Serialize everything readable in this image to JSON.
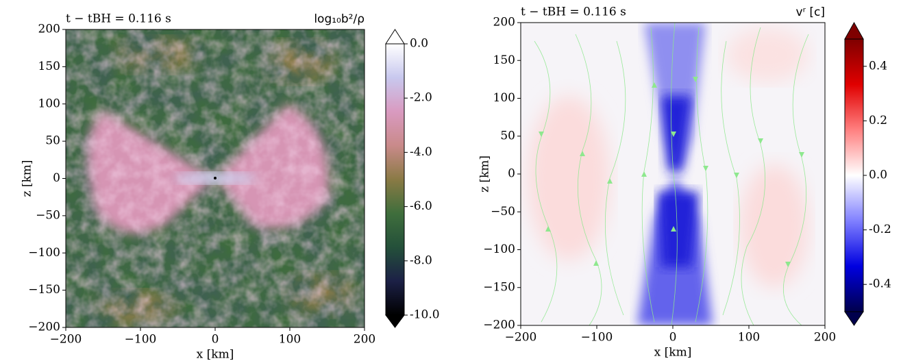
{
  "chart_data": [
    {
      "type": "heatmap",
      "annotation": "t − tBH = 0.116 s",
      "colorbar_label": "log₁₀b²/ρ",
      "xlabel": "x [km]",
      "ylabel": "z [km]",
      "xlim": [
        -200,
        200
      ],
      "ylim": [
        -200,
        200
      ],
      "xticks": [
        {
          "value": -200,
          "label": "−200"
        },
        {
          "value": -100,
          "label": "−100"
        },
        0,
        100,
        200
      ],
      "yticks": [
        200,
        150,
        100,
        50,
        0,
        {
          "value": -50,
          "label": "−50"
        },
        {
          "value": -100,
          "label": "−100"
        },
        {
          "value": -150,
          "label": "−150"
        },
        {
          "value": -200,
          "label": "−200"
        }
      ],
      "clim": [
        -10,
        0
      ],
      "cticks": [
        {
          "value": 0,
          "label": "0.0"
        },
        {
          "value": -2,
          "label": "-2.0"
        },
        {
          "value": -4,
          "label": "-4.0"
        },
        {
          "value": -6,
          "label": "-6.0"
        },
        {
          "value": -8,
          "label": "-8.0"
        },
        {
          "value": -10,
          "label": "-10.0"
        }
      ],
      "colormap": [
        "#000000",
        "#1c2046",
        "#24503a",
        "#3f6e3c",
        "#8a7a45",
        "#c98a8a",
        "#d99ac0",
        "#c8c8ee",
        "#ffffff"
      ],
      "extend_colors": [
        "#000000",
        "#ffffff"
      ]
    },
    {
      "type": "heatmap",
      "annotation": "t − tBH = 0.116 s",
      "colorbar_label": "vʳ [c]",
      "xlabel": "x [km]",
      "ylabel": "z [km]",
      "xlim": [
        -200,
        200
      ],
      "ylim": [
        -200,
        200
      ],
      "xticks": [
        {
          "value": -200,
          "label": "−200"
        },
        {
          "value": -100,
          "label": "−100"
        },
        0,
        100,
        200
      ],
      "yticks": [
        200,
        150,
        100,
        50,
        0,
        {
          "value": -50,
          "label": "−50"
        },
        {
          "value": -100,
          "label": "−100"
        },
        {
          "value": -150,
          "label": "−150"
        },
        {
          "value": -200,
          "label": "−200"
        }
      ],
      "clim": [
        -0.5,
        0.5
      ],
      "cticks": [
        0.4,
        0.2,
        {
          "value": 0,
          "label": "0.0"
        },
        -0.2,
        -0.4
      ],
      "colormap": [
        "#00004c",
        "#0000e0",
        "#8080ff",
        "#ffffff",
        "#ff8080",
        "#e00000",
        "#7f0000"
      ],
      "extend_colors": [
        "#00004c",
        "#7f0000"
      ]
    }
  ]
}
